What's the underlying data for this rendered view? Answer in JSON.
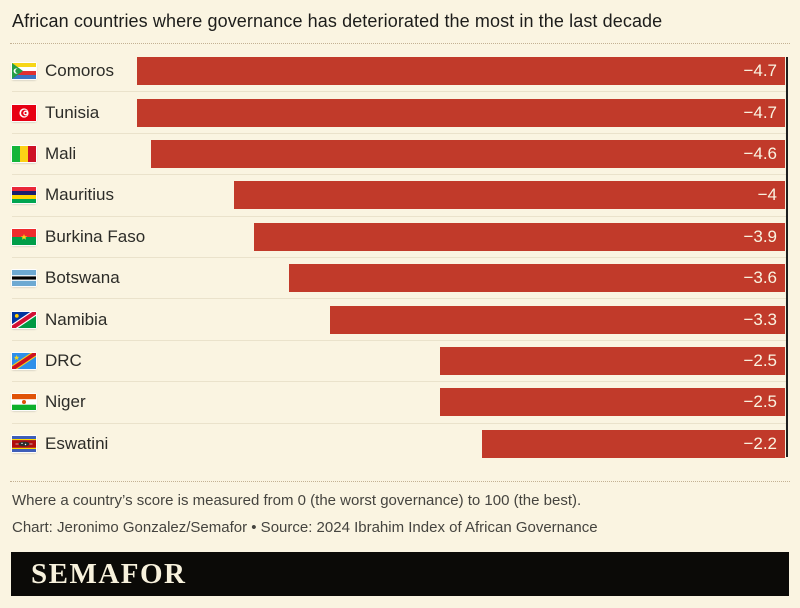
{
  "title": "African countries where governance has deteriorated the most in the last decade",
  "chart_data": {
    "type": "bar",
    "orientation": "horizontal",
    "anchor": "right",
    "title": "African countries where governance has deteriorated the most in the last decade",
    "categories": [
      "Comoros",
      "Tunisia",
      "Mali",
      "Mauritius",
      "Burkina Faso",
      "Botswana",
      "Namibia",
      "DRC",
      "Niger",
      "Eswatini"
    ],
    "values": [
      -4.7,
      -4.7,
      -4.6,
      -4,
      -3.9,
      -3.6,
      -3.3,
      -2.5,
      -2.5,
      -2.2
    ],
    "value_labels": [
      "−4.7",
      "−4.7",
      "−4.6",
      "−4",
      "−3.9",
      "−3.6",
      "−3.3",
      "−2.5",
      "−2.5",
      "−2.2"
    ],
    "flag_icons": [
      "comoros-flag",
      "tunisia-flag",
      "mali-flag",
      "mauritius-flag",
      "burkina-faso-flag",
      "botswana-flag",
      "namibia-flag",
      "drc-flag",
      "niger-flag",
      "eswatini-flag"
    ],
    "xlim": [
      -4.7,
      0
    ],
    "bar_color": "#c13a2a",
    "grid": false,
    "legend": false
  },
  "footer": {
    "note": "Where a country’s score is measured from 0 (the worst governance) to 100 (the best).",
    "credit": "Chart: Jeronimo Gonzalez/Semafor • Source: 2024 Ibrahim Index of African Governance"
  },
  "logo": {
    "text": "SEMAFOR"
  },
  "colors": {
    "background": "#faf4e1",
    "bar": "#c13a2a",
    "baseline": "#1f1f1f",
    "title_text": "#1d1d1b",
    "label_text": "#2c2c28",
    "value_text": "#faf4e1",
    "footer_text": "#45443f",
    "logo_bg": "#0b0a07",
    "logo_text": "#f7f1dc"
  }
}
